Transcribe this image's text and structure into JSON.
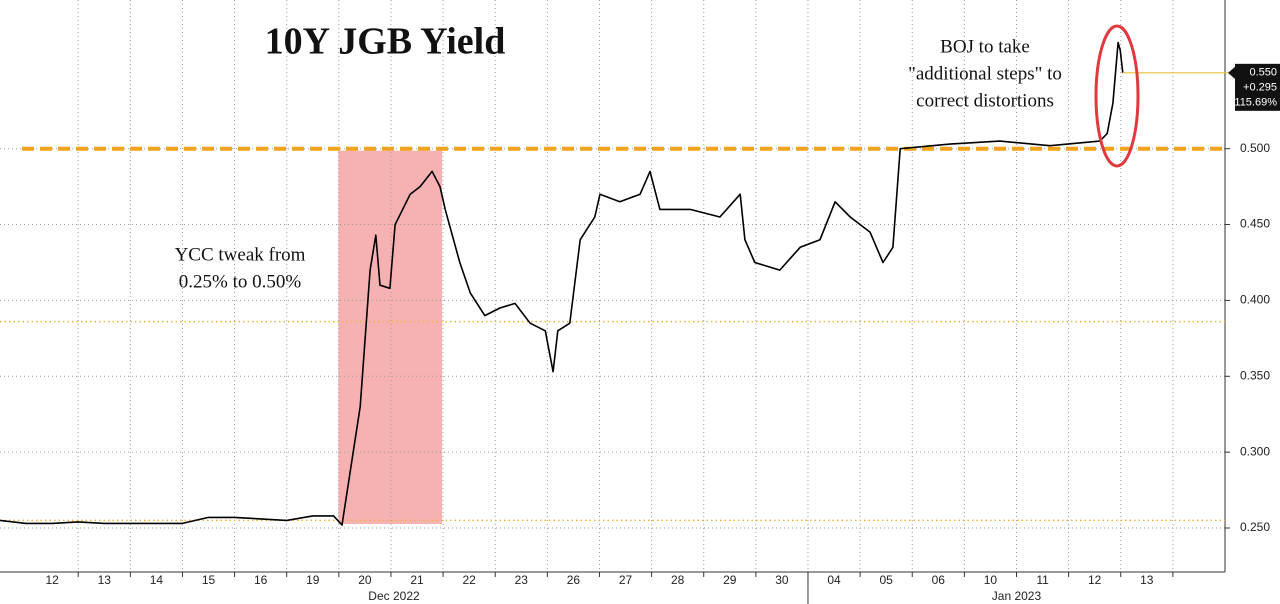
{
  "chart_data": {
    "type": "line",
    "title": "10Y JGB Yield",
    "annotations": [
      {
        "lines": [
          "YCC tweak from",
          "0.25% to 0.50%"
        ]
      },
      {
        "lines": [
          "BOJ to take",
          "\"additional steps\" to",
          "correct distortions"
        ]
      }
    ],
    "xlim": [
      -1,
      22.5
    ],
    "xticks": [
      {
        "value": 0,
        "label": "12"
      },
      {
        "value": 1,
        "label": "13"
      },
      {
        "value": 2,
        "label": "14"
      },
      {
        "value": 3,
        "label": "15"
      },
      {
        "value": 4,
        "label": "16"
      },
      {
        "value": 5,
        "label": "19"
      },
      {
        "value": 6,
        "label": "20"
      },
      {
        "value": 7,
        "label": "21"
      },
      {
        "value": 8,
        "label": "22"
      },
      {
        "value": 9,
        "label": "23"
      },
      {
        "value": 10,
        "label": "26"
      },
      {
        "value": 11,
        "label": "27"
      },
      {
        "value": 12,
        "label": "28"
      },
      {
        "value": 13,
        "label": "29"
      },
      {
        "value": 14,
        "label": "30"
      },
      {
        "value": 15,
        "label": "04"
      },
      {
        "value": 16,
        "label": "05"
      },
      {
        "value": 17,
        "label": "06"
      },
      {
        "value": 18,
        "label": "10"
      },
      {
        "value": 19,
        "label": "11"
      },
      {
        "value": 20,
        "label": "12"
      },
      {
        "value": 21,
        "label": "13"
      }
    ],
    "x_groups": [
      "Dec 2022",
      "Jan 2023"
    ],
    "ylim": [
      0.221,
      0.598
    ],
    "yticks": [
      {
        "value": 0.25,
        "label": "0.250"
      },
      {
        "value": 0.3,
        "label": "0.300"
      },
      {
        "value": 0.35,
        "label": "0.350"
      },
      {
        "value": 0.4,
        "label": "0.400"
      },
      {
        "value": 0.45,
        "label": "0.450"
      },
      {
        "value": 0.5,
        "label": "0.500"
      }
    ],
    "grid": true,
    "series": [
      {
        "color": "#000000",
        "x": [
          -1,
          -0.5,
          0,
          0.5,
          1,
          1.5,
          2,
          2.5,
          3,
          3.5,
          4,
          4.5,
          5,
          5.4,
          5.56,
          5.91,
          6.1,
          6.21,
          6.29,
          6.48,
          6.58,
          6.87,
          7.06,
          7.29,
          7.44,
          7.54,
          7.82,
          8.02,
          8.3,
          8.59,
          8.88,
          9.17,
          9.46,
          9.61,
          9.7,
          9.93,
          10.13,
          10.41,
          10.51,
          10.89,
          11.28,
          11.47,
          11.66,
          12.24,
          12.81,
          13.2,
          13.29,
          13.48,
          13.96,
          14.35,
          14.73,
          15.02,
          15.31,
          15.69,
          15.94,
          16.13,
          16.27,
          17.22,
          18.18,
          19.14,
          20.1,
          20.24,
          20.35,
          20.45,
          20.49,
          20.54
        ],
        "values": [
          0.255,
          0.253,
          0.253,
          0.254,
          0.253,
          0.253,
          0.253,
          0.253,
          0.257,
          0.257,
          0.256,
          0.255,
          0.258,
          0.258,
          0.252,
          0.33,
          0.42,
          0.443,
          0.41,
          0.408,
          0.45,
          0.47,
          0.475,
          0.485,
          0.475,
          0.46,
          0.425,
          0.405,
          0.39,
          0.395,
          0.398,
          0.385,
          0.38,
          0.353,
          0.38,
          0.385,
          0.44,
          0.455,
          0.47,
          0.465,
          0.47,
          0.485,
          0.46,
          0.46,
          0.455,
          0.47,
          0.44,
          0.425,
          0.42,
          0.435,
          0.44,
          0.465,
          0.455,
          0.445,
          0.425,
          0.435,
          0.5,
          0.503,
          0.505,
          0.502,
          0.505,
          0.51,
          0.53,
          0.57,
          0.565,
          0.55
        ]
      }
    ],
    "last_value": {
      "value": 0.55,
      "label": "0.550",
      "change": "+0.295",
      "change_pct": "115.69%",
      "color": "#e8c23a"
    },
    "hlines": [
      {
        "value": 0.5,
        "style": "dashed",
        "color": "#f0a41e"
      },
      {
        "value": 0.386,
        "style": "dotted",
        "color": "#f0b43c"
      },
      {
        "value": 0.255,
        "style": "dotted",
        "color": "#f0b43c"
      }
    ],
    "shaded": {
      "x": [
        5.49,
        7.48
      ],
      "color": "#f4a4a4"
    }
  }
}
